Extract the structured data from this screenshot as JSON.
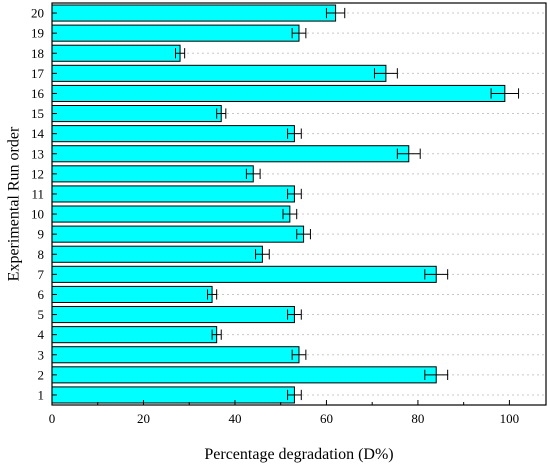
{
  "chart_data": {
    "type": "bar",
    "orientation": "horizontal",
    "title": "",
    "xlabel": "Percentage degradation (D%)",
    "ylabel": "Experimental Run order",
    "categories": [
      "1",
      "2",
      "3",
      "4",
      "5",
      "6",
      "7",
      "8",
      "9",
      "10",
      "11",
      "12",
      "13",
      "14",
      "15",
      "16",
      "17",
      "18",
      "19",
      "20"
    ],
    "series": [
      {
        "values": [
          53,
          84,
          54,
          36,
          53,
          35,
          84,
          46,
          55,
          52,
          53,
          44,
          78,
          53,
          37,
          99,
          73,
          28,
          54,
          62
        ],
        "errors": [
          1.5,
          2.5,
          1.5,
          1.0,
          1.5,
          1.0,
          2.5,
          1.5,
          1.5,
          1.5,
          1.5,
          1.5,
          2.5,
          1.5,
          1.0,
          3.0,
          2.5,
          1.0,
          1.5,
          2.0
        ]
      }
    ],
    "xlim": [
      0,
      108
    ],
    "xticks": [
      "0",
      "20",
      "40",
      "60",
      "80",
      "100"
    ],
    "grid": true,
    "grid_style": "dashed-horizontal",
    "bar_color": "#00ffff",
    "bar_edge_color": "#000000"
  }
}
